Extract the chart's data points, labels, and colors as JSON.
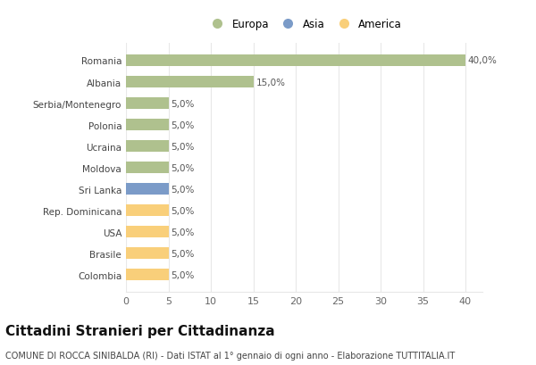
{
  "categories": [
    "Colombia",
    "Brasile",
    "USA",
    "Rep. Dominicana",
    "Sri Lanka",
    "Moldova",
    "Ucraina",
    "Polonia",
    "Serbia/Montenegro",
    "Albania",
    "Romania"
  ],
  "values": [
    5.0,
    5.0,
    5.0,
    5.0,
    5.0,
    5.0,
    5.0,
    5.0,
    5.0,
    15.0,
    40.0
  ],
  "colors": [
    "#f9cf7a",
    "#f9cf7a",
    "#f9cf7a",
    "#f9cf7a",
    "#7b9bc8",
    "#afc18e",
    "#afc18e",
    "#afc18e",
    "#afc18e",
    "#afc18e",
    "#afc18e"
  ],
  "legend": [
    {
      "label": "Europa",
      "color": "#afc18e"
    },
    {
      "label": "Asia",
      "color": "#7b9bc8"
    },
    {
      "label": "America",
      "color": "#f9cf7a"
    }
  ],
  "xlim": [
    0,
    42
  ],
  "xticks": [
    0,
    5,
    10,
    15,
    20,
    25,
    30,
    35,
    40
  ],
  "title": "Cittadini Stranieri per Cittadinanza",
  "subtitle": "COMUNE DI ROCCA SINIBALDA (RI) - Dati ISTAT al 1° gennaio di ogni anno - Elaborazione TUTTITALIA.IT",
  "title_fontsize": 11,
  "subtitle_fontsize": 7,
  "background_color": "#ffffff",
  "grid_color": "#e8e8e8"
}
